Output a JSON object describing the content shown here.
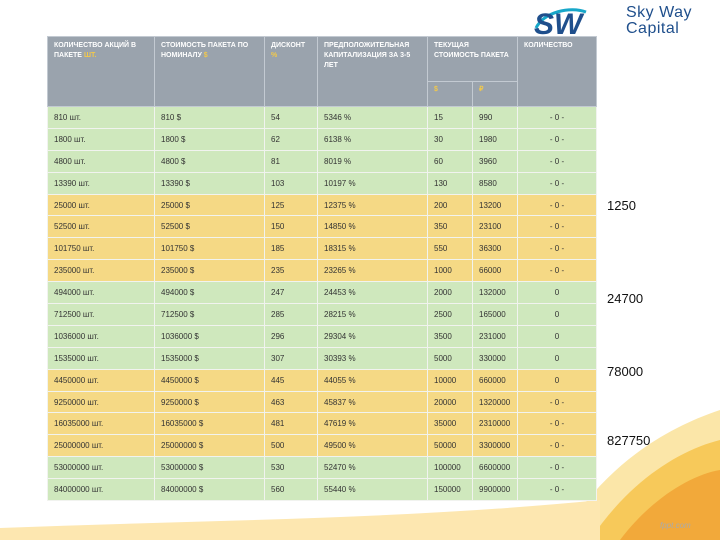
{
  "logo": {
    "mark": "SW",
    "line1": "Sky Way",
    "line2": "Capital",
    "colors": {
      "blue": "#1f4f8c",
      "teal": "#17a7c9"
    }
  },
  "table": {
    "headers": {
      "shares": "КОЛИЧЕСТВО АКЦИЙ В ПАКЕТЕ",
      "shares_unit": "ШТ.",
      "nominal": "СТОИМОСТЬ ПАКЕТА ПО НОМИНАЛУ",
      "nominal_unit": "$",
      "discount": "ДИСКОНТ",
      "discount_unit": "%",
      "capitalization": "ПРЕДПОЛОЖИТЕЛЬНАЯ КАПИТАЛИЗАЦИЯ ЗА 3-5 ЛЕТ",
      "current": "ТЕКУЩАЯ СТОИМОСТЬ ПАКЕТА",
      "current_usd": "$",
      "current_rub": "₽",
      "quantity": "КОЛИЧЕСТВО"
    },
    "rows": [
      {
        "shares": "810 шт.",
        "nominal": "810 $",
        "discount": "54",
        "cap": "5346 %",
        "usd": "15",
        "rub": "990",
        "qty": "- 0 -"
      },
      {
        "shares": "1800 шт.",
        "nominal": "1800 $",
        "discount": "62",
        "cap": "6138 %",
        "usd": "30",
        "rub": "1980",
        "qty": "- 0 -"
      },
      {
        "shares": "4800 шт.",
        "nominal": "4800 $",
        "discount": "81",
        "cap": "8019 %",
        "usd": "60",
        "rub": "3960",
        "qty": "- 0 -"
      },
      {
        "shares": "13390 шт.",
        "nominal": "13390 $",
        "discount": "103",
        "cap": "10197 %",
        "usd": "130",
        "rub": "8580",
        "qty": "- 0 -"
      },
      {
        "shares": "25000 шт.",
        "nominal": "25000 $",
        "discount": "125",
        "cap": "12375 %",
        "usd": "200",
        "rub": "13200",
        "qty": "- 0 -"
      },
      {
        "shares": "52500 шт.",
        "nominal": "52500 $",
        "discount": "150",
        "cap": "14850 %",
        "usd": "350",
        "rub": "23100",
        "qty": "- 0 -"
      },
      {
        "shares": "101750 шт.",
        "nominal": "101750 $",
        "discount": "185",
        "cap": "18315 %",
        "usd": "550",
        "rub": "36300",
        "qty": "- 0 -"
      },
      {
        "shares": "235000 шт.",
        "nominal": "235000 $",
        "discount": "235",
        "cap": "23265 %",
        "usd": "1000",
        "rub": "66000",
        "qty": "- 0 -"
      },
      {
        "shares": "494000 шт.",
        "nominal": "494000 $",
        "discount": "247",
        "cap": "24453 %",
        "usd": "2000",
        "rub": "132000",
        "qty": "0"
      },
      {
        "shares": "712500 шт.",
        "nominal": "712500 $",
        "discount": "285",
        "cap": "28215 %",
        "usd": "2500",
        "rub": "165000",
        "qty": "0"
      },
      {
        "shares": "1036000 шт.",
        "nominal": "1036000 $",
        "discount": "296",
        "cap": "29304 %",
        "usd": "3500",
        "rub": "231000",
        "qty": "0"
      },
      {
        "shares": "1535000 шт.",
        "nominal": "1535000 $",
        "discount": "307",
        "cap": "30393 %",
        "usd": "5000",
        "rub": "330000",
        "qty": "0"
      },
      {
        "shares": "4450000 шт.",
        "nominal": "4450000 $",
        "discount": "445",
        "cap": "44055 %",
        "usd": "10000",
        "rub": "660000",
        "qty": "0"
      },
      {
        "shares": "9250000 шт.",
        "nominal": "9250000 $",
        "discount": "463",
        "cap": "45837 %",
        "usd": "20000",
        "rub": "1320000",
        "qty": "- 0 -"
      },
      {
        "shares": "16035000 шт.",
        "nominal": "16035000 $",
        "discount": "481",
        "cap": "47619 %",
        "usd": "35000",
        "rub": "2310000",
        "qty": "- 0 -"
      },
      {
        "shares": "25000000 шт.",
        "nominal": "25000000 $",
        "discount": "500",
        "cap": "49500 %",
        "usd": "50000",
        "rub": "3300000",
        "qty": "- 0 -"
      },
      {
        "shares": "53000000 шт.",
        "nominal": "53000000 $",
        "discount": "530",
        "cap": "52470 %",
        "usd": "100000",
        "rub": "6600000",
        "qty": "- 0 -"
      },
      {
        "shares": "84000000 шт.",
        "nominal": "84000000 $",
        "discount": "560",
        "cap": "55440 %",
        "usd": "150000",
        "rub": "9900000",
        "qty": "- 0 -"
      }
    ],
    "row_colors": [
      "green",
      "green",
      "green",
      "green",
      "yellow",
      "yellow",
      "yellow",
      "yellow",
      "green",
      "green",
      "green",
      "green",
      "yellow",
      "yellow",
      "yellow",
      "yellow",
      "green",
      "green"
    ]
  },
  "side_values": [
    "1250",
    "24700",
    "78000",
    "827750"
  ],
  "watermark": "fppt.com"
}
